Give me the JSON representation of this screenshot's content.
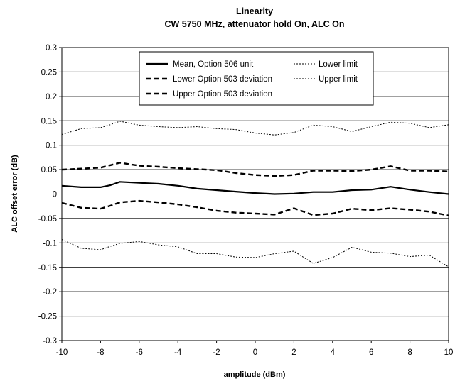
{
  "chart_data": {
    "type": "line",
    "title": "Linearity",
    "subtitle": "CW 5750 MHz, attenuator hold On, ALC On",
    "xlabel": "amplitude (dBm)",
    "ylabel": "ALC offset error (dB)",
    "xlim": [
      -10,
      10
    ],
    "ylim": [
      -0.3,
      0.3
    ],
    "xticks": [
      "-10",
      "-8",
      "-6",
      "-4",
      "-2",
      "0",
      "2",
      "4",
      "6",
      "8",
      "10"
    ],
    "yticks": [
      "0.3",
      "0.25",
      "0.2",
      "0.15",
      "0.1",
      "0.05",
      "0",
      "-0.05",
      "-0.1",
      "-0.15",
      "-0.2",
      "-0.25",
      "-0.3"
    ],
    "grid": "horizontal",
    "legend_placement": "top-center",
    "x": [
      -10,
      -9,
      -8,
      -7.5,
      -7,
      -6,
      -5,
      -4,
      -3,
      -2,
      -1,
      0,
      1,
      2,
      3,
      4,
      5,
      6,
      7,
      8,
      9,
      10
    ],
    "series": [
      {
        "name": "Mean, Option 506 unit",
        "style": "solid",
        "values": [
          0.017,
          0.014,
          0.014,
          0.018,
          0.025,
          0.023,
          0.021,
          0.017,
          0.011,
          0.008,
          0.005,
          0.002,
          0.0,
          0.001,
          0.004,
          0.004,
          0.008,
          0.009,
          0.015,
          0.009,
          0.004,
          0.0
        ]
      },
      {
        "name": "Lower Option 503 deviation",
        "style": "dashed",
        "values": [
          -0.018,
          -0.028,
          -0.03,
          -0.024,
          -0.017,
          -0.014,
          -0.017,
          -0.021,
          -0.027,
          -0.034,
          -0.038,
          -0.04,
          -0.042,
          -0.029,
          -0.043,
          -0.04,
          -0.03,
          -0.033,
          -0.029,
          -0.032,
          -0.036,
          -0.044
        ]
      },
      {
        "name": "Upper Option 503 deviation",
        "style": "dashed",
        "values": [
          0.05,
          0.052,
          0.054,
          0.059,
          0.064,
          0.058,
          0.056,
          0.053,
          0.051,
          0.049,
          0.043,
          0.039,
          0.037,
          0.039,
          0.048,
          0.048,
          0.047,
          0.05,
          0.057,
          0.048,
          0.048,
          0.046
        ]
      },
      {
        "name": "Lower limit",
        "style": "dotted",
        "values": [
          -0.093,
          -0.111,
          -0.114,
          -0.107,
          -0.101,
          -0.097,
          -0.104,
          -0.108,
          -0.122,
          -0.122,
          -0.129,
          -0.13,
          -0.122,
          -0.117,
          -0.142,
          -0.13,
          -0.109,
          -0.119,
          -0.121,
          -0.128,
          -0.125,
          -0.149
        ]
      },
      {
        "name": "Upper limit",
        "style": "dotted",
        "values": [
          0.122,
          0.134,
          0.136,
          0.142,
          0.149,
          0.141,
          0.138,
          0.136,
          0.138,
          0.134,
          0.132,
          0.125,
          0.121,
          0.126,
          0.141,
          0.138,
          0.128,
          0.138,
          0.147,
          0.145,
          0.136,
          0.142
        ]
      }
    ],
    "legend": {
      "left_column": [
        "Mean, Option 506 unit",
        "Lower Option 503 deviation",
        "Upper Option 503 deviation"
      ],
      "right_column": [
        "Lower limit",
        "Upper limit"
      ]
    }
  }
}
